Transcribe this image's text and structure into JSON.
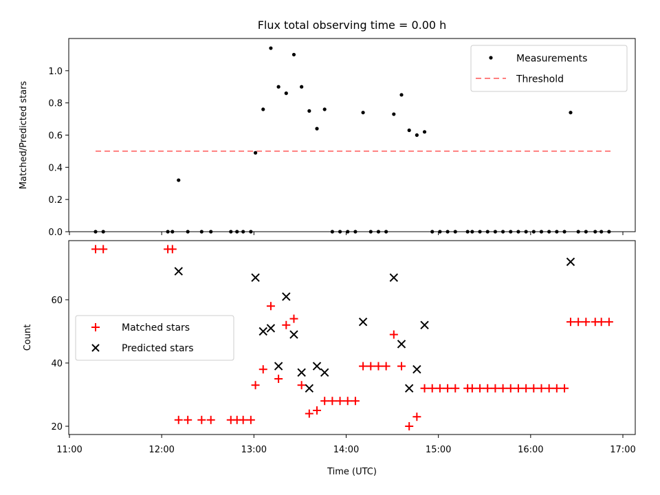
{
  "title": "Flux total observing time = 0.00 h",
  "colors": {
    "measurement": "#000000",
    "threshold": "#ff7f7f",
    "matched": "#ff0000",
    "predicted": "#000000",
    "axis": "#000000"
  },
  "chart_data": [
    {
      "type": "scatter",
      "title": "Flux total observing time = 0.00 h",
      "xlabel": "",
      "ylabel": "Matched/Predicted stars",
      "xlim": [
        "11:00",
        "17:10"
      ],
      "ylim": [
        0,
        1.2
      ],
      "yticks": [
        "0.0",
        "0.2",
        "0.4",
        "0.6",
        "0.8",
        "1.0"
      ],
      "ytick_values": [
        0,
        0.2,
        0.4,
        0.6,
        0.8,
        1.0
      ],
      "legend": "top-right",
      "grid": false,
      "series": [
        {
          "name": "Measurements",
          "marker": "dot",
          "points": [
            [
              "11:17",
              0
            ],
            [
              "11:22",
              0
            ],
            [
              "12:04",
              0
            ],
            [
              "12:07",
              0
            ],
            [
              "12:11",
              0.32
            ],
            [
              "12:17",
              0
            ],
            [
              "12:26",
              0
            ],
            [
              "12:32",
              0
            ],
            [
              "12:45",
              0
            ],
            [
              "12:49",
              0
            ],
            [
              "12:53",
              0
            ],
            [
              "12:58",
              0
            ],
            [
              "13:01",
              0.49
            ],
            [
              "13:06",
              0.76
            ],
            [
              "13:11",
              1.14
            ],
            [
              "13:16",
              0.9
            ],
            [
              "13:21",
              0.86
            ],
            [
              "13:26",
              1.1
            ],
            [
              "13:31",
              0.9
            ],
            [
              "13:36",
              0.75
            ],
            [
              "13:41",
              0.64
            ],
            [
              "13:46",
              0.76
            ],
            [
              "13:51",
              0
            ],
            [
              "13:56",
              0
            ],
            [
              "14:01",
              0
            ],
            [
              "14:06",
              0
            ],
            [
              "14:11",
              0.74
            ],
            [
              "14:16",
              0
            ],
            [
              "14:21",
              0
            ],
            [
              "14:26",
              0
            ],
            [
              "14:31",
              0.73
            ],
            [
              "14:36",
              0.85
            ],
            [
              "14:41",
              0.63
            ],
            [
              "14:46",
              0.6
            ],
            [
              "14:51",
              0.62
            ],
            [
              "14:56",
              0
            ],
            [
              "15:01",
              0
            ],
            [
              "15:06",
              0
            ],
            [
              "15:11",
              0
            ],
            [
              "15:19",
              0
            ],
            [
              "15:22",
              0
            ],
            [
              "15:27",
              0
            ],
            [
              "15:32",
              0
            ],
            [
              "15:37",
              0
            ],
            [
              "15:42",
              0
            ],
            [
              "15:47",
              0
            ],
            [
              "15:52",
              0
            ],
            [
              "15:57",
              0
            ],
            [
              "16:02",
              0
            ],
            [
              "16:07",
              0
            ],
            [
              "16:12",
              0
            ],
            [
              "16:17",
              0
            ],
            [
              "16:22",
              0
            ],
            [
              "16:26",
              0.74
            ],
            [
              "16:31",
              0
            ],
            [
              "16:36",
              0
            ],
            [
              "16:42",
              0
            ],
            [
              "16:46",
              0
            ],
            [
              "16:51",
              0
            ]
          ]
        },
        {
          "name": "Threshold",
          "marker": "dashed-line",
          "points": [
            [
              "11:17",
              0.5
            ],
            [
              "16:52",
              0.5
            ]
          ]
        }
      ]
    },
    {
      "type": "scatter",
      "title": "",
      "xlabel": "Time (UTC)",
      "ylabel": "Count",
      "xlim": [
        "11:00",
        "17:10"
      ],
      "ylim": [
        17,
        78
      ],
      "yticks": [
        "20",
        "40",
        "60"
      ],
      "ytick_values": [
        20,
        40,
        60
      ],
      "xticks": [
        "11:00",
        "12:00",
        "13:00",
        "14:00",
        "15:00",
        "16:00",
        "17:00"
      ],
      "legend": "center-left",
      "grid": false,
      "series": [
        {
          "name": "Matched stars",
          "marker": "plus",
          "points": [
            [
              "11:17",
              76
            ],
            [
              "11:22",
              76
            ],
            [
              "12:04",
              76
            ],
            [
              "12:07",
              76
            ],
            [
              "12:11",
              22
            ],
            [
              "12:17",
              22
            ],
            [
              "12:26",
              22
            ],
            [
              "12:32",
              22
            ],
            [
              "12:45",
              22
            ],
            [
              "12:49",
              22
            ],
            [
              "12:53",
              22
            ],
            [
              "12:58",
              22
            ],
            [
              "13:01",
              33
            ],
            [
              "13:06",
              38
            ],
            [
              "13:11",
              58
            ],
            [
              "13:16",
              35
            ],
            [
              "13:21",
              52
            ],
            [
              "13:26",
              54
            ],
            [
              "13:31",
              33
            ],
            [
              "13:36",
              24
            ],
            [
              "13:41",
              25
            ],
            [
              "13:46",
              28
            ],
            [
              "13:51",
              28
            ],
            [
              "13:56",
              28
            ],
            [
              "14:01",
              28
            ],
            [
              "14:06",
              28
            ],
            [
              "14:11",
              39
            ],
            [
              "14:16",
              39
            ],
            [
              "14:21",
              39
            ],
            [
              "14:26",
              39
            ],
            [
              "14:31",
              49
            ],
            [
              "14:36",
              39
            ],
            [
              "14:41",
              20
            ],
            [
              "14:46",
              23
            ],
            [
              "14:51",
              32
            ],
            [
              "14:56",
              32
            ],
            [
              "15:01",
              32
            ],
            [
              "15:06",
              32
            ],
            [
              "15:11",
              32
            ],
            [
              "15:19",
              32
            ],
            [
              "15:22",
              32
            ],
            [
              "15:27",
              32
            ],
            [
              "15:32",
              32
            ],
            [
              "15:37",
              32
            ],
            [
              "15:42",
              32
            ],
            [
              "15:47",
              32
            ],
            [
              "15:52",
              32
            ],
            [
              "15:57",
              32
            ],
            [
              "16:02",
              32
            ],
            [
              "16:07",
              32
            ],
            [
              "16:12",
              32
            ],
            [
              "16:17",
              32
            ],
            [
              "16:22",
              32
            ],
            [
              "16:26",
              53
            ],
            [
              "16:31",
              53
            ],
            [
              "16:36",
              53
            ],
            [
              "16:42",
              53
            ],
            [
              "16:46",
              53
            ],
            [
              "16:51",
              53
            ]
          ]
        },
        {
          "name": "Predicted stars",
          "marker": "x",
          "points": [
            [
              "12:11",
              69
            ],
            [
              "13:01",
              67
            ],
            [
              "13:06",
              50
            ],
            [
              "13:11",
              51
            ],
            [
              "13:16",
              39
            ],
            [
              "13:21",
              61
            ],
            [
              "13:26",
              49
            ],
            [
              "13:31",
              37
            ],
            [
              "13:36",
              32
            ],
            [
              "13:41",
              39
            ],
            [
              "13:46",
              37
            ],
            [
              "14:11",
              53
            ],
            [
              "14:31",
              67
            ],
            [
              "14:36",
              46
            ],
            [
              "14:41",
              32
            ],
            [
              "14:46",
              38
            ],
            [
              "14:51",
              52
            ],
            [
              "16:26",
              72
            ]
          ]
        }
      ]
    }
  ]
}
